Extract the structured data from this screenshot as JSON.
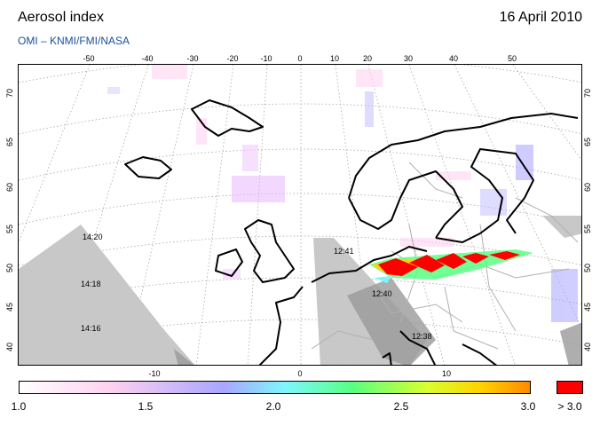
{
  "header": {
    "title": "Aerosol index",
    "date": "16 April 2010",
    "subtitle": "OMI  –  KNMI/FMI/NASA"
  },
  "map": {
    "top_lon_labels": [
      "-50",
      "-40",
      "-30",
      "-20",
      "-10",
      "0",
      "10",
      "20",
      "30",
      "40",
      "50"
    ],
    "bottom_lon_labels": [
      "-10",
      "0",
      "10"
    ],
    "left_lat_labels": [
      "70",
      "65",
      "60",
      "55",
      "50",
      "45",
      "40"
    ],
    "right_lat_labels": [
      "70",
      "65",
      "60",
      "55",
      "50",
      "45",
      "40"
    ],
    "orbit_times": [
      "14:20",
      "14:18",
      "14:16",
      "12:41",
      "12:40",
      "12:38"
    ],
    "colors": {
      "no_data": "#c8c8c8",
      "coast": "#000000",
      "borders": "#b0b0b0",
      "plume_high": "#ff0000",
      "plume_mid": "#ffd400",
      "plume_low": "#58ff84"
    }
  },
  "colorbar": {
    "tick_labels": [
      "1.0",
      "1.5",
      "2.0",
      "2.5",
      "3.0"
    ],
    "overflow_label": "> 3.0",
    "range": [
      1.0,
      3.0
    ]
  }
}
